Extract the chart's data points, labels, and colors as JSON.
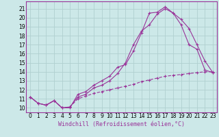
{
  "xlabel": "Windchill (Refroidissement éolien,°C)",
  "bg_color": "#cce8e8",
  "line_color": "#993399",
  "grid_color": "#b0d0d0",
  "xlim": [
    -0.5,
    23.5
  ],
  "ylim": [
    9.5,
    21.8
  ],
  "xticks": [
    0,
    1,
    2,
    3,
    4,
    5,
    6,
    7,
    8,
    9,
    10,
    11,
    12,
    13,
    14,
    15,
    16,
    17,
    18,
    19,
    20,
    21,
    22,
    23
  ],
  "yticks": [
    10,
    11,
    12,
    13,
    14,
    15,
    16,
    17,
    18,
    19,
    20,
    21
  ],
  "line1_x": [
    0,
    1,
    2,
    3,
    4,
    5,
    6,
    7,
    8,
    9,
    10,
    11,
    12,
    13,
    14,
    15,
    16,
    17,
    18,
    19,
    20,
    21,
    22,
    23
  ],
  "line1_y": [
    11.2,
    10.5,
    10.3,
    10.8,
    10.0,
    10.0,
    11.5,
    11.8,
    12.5,
    13.0,
    13.5,
    14.5,
    14.8,
    16.3,
    18.3,
    20.5,
    20.6,
    21.2,
    20.5,
    19.8,
    18.8,
    17.0,
    15.2,
    13.9
  ],
  "line2_x": [
    0,
    1,
    2,
    3,
    4,
    5,
    6,
    7,
    8,
    9,
    10,
    11,
    12,
    13,
    14,
    15,
    16,
    17,
    18,
    19,
    20,
    21,
    22,
    23
  ],
  "line2_y": [
    11.2,
    10.5,
    10.3,
    10.8,
    10.0,
    10.1,
    11.2,
    11.5,
    12.2,
    12.5,
    13.0,
    13.8,
    15.0,
    17.0,
    18.5,
    19.2,
    20.4,
    21.0,
    20.5,
    19.2,
    17.0,
    16.5,
    14.2,
    13.9
  ],
  "line3_x": [
    0,
    1,
    2,
    3,
    4,
    5,
    6,
    7,
    8,
    9,
    10,
    11,
    12,
    13,
    14,
    15,
    16,
    17,
    18,
    19,
    20,
    21,
    22,
    23
  ],
  "line3_y": [
    11.2,
    10.5,
    10.3,
    10.8,
    10.0,
    10.1,
    11.0,
    11.3,
    11.6,
    11.8,
    12.0,
    12.2,
    12.4,
    12.6,
    12.9,
    13.1,
    13.3,
    13.5,
    13.6,
    13.7,
    13.8,
    13.9,
    14.0,
    14.0
  ],
  "spine_color": "#993399",
  "tick_fontsize": 5.5,
  "xlabel_fontsize": 6.0
}
